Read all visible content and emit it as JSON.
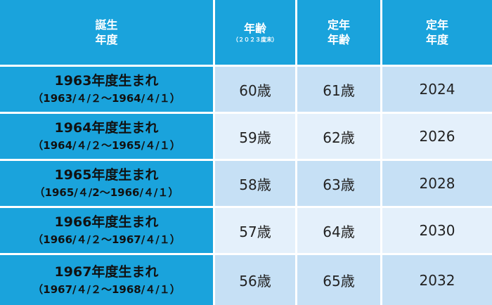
{
  "table": {
    "header": [
      {
        "lines": [
          "誕生",
          "年度"
        ]
      },
      {
        "lines": [
          "年齢"
        ],
        "note": "（２０２３度末）"
      },
      {
        "lines": [
          "定年",
          "年齢"
        ]
      },
      {
        "lines": [
          "定年",
          "年度"
        ]
      }
    ],
    "rows": [
      [
        "1963年度生まれ",
        "（1963/４/２～1964/４/１）",
        "60歳",
        "61歳",
        "2024"
      ],
      [
        "1964年度生まれ",
        "（1964/４/２～1965/４/１）",
        "59歳",
        "62歳",
        "2026"
      ],
      [
        "1965年度生まれ",
        "（1965/４/2～1966/４/１）",
        "58歳",
        "63歳",
        "2028"
      ],
      [
        "1966年度生まれ",
        "（1966/４/２～1967/４/１）",
        "57歳",
        "64歳",
        "2030"
      ],
      [
        "1967年度生まれ",
        "（1967/４/２～1968/４/１）",
        "56歳",
        "65歳",
        "2032"
      ]
    ]
  }
}
